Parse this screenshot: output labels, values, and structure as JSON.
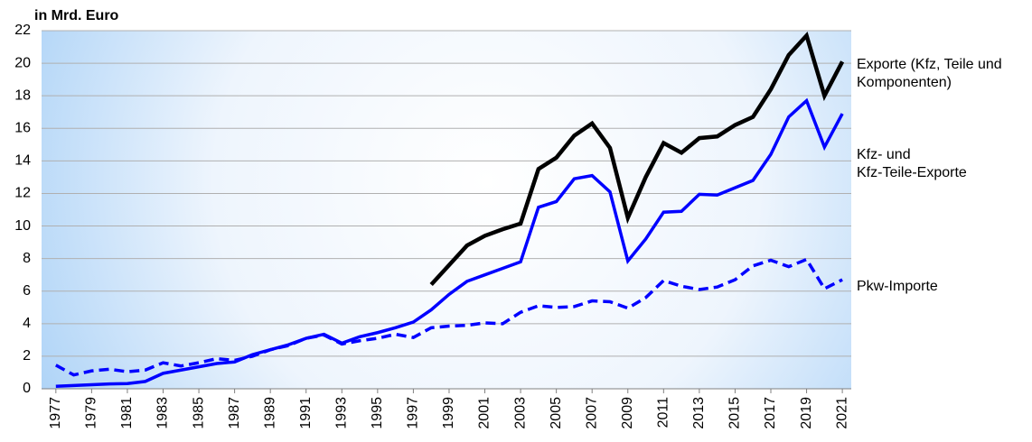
{
  "chart_data": {
    "type": "line",
    "y_label": "in Mrd. Euro",
    "x": [
      1977,
      1978,
      1979,
      1980,
      1981,
      1982,
      1983,
      1984,
      1985,
      1986,
      1987,
      1988,
      1989,
      1990,
      1991,
      1992,
      1993,
      1994,
      1995,
      1996,
      1997,
      1998,
      1999,
      2000,
      2001,
      2002,
      2003,
      2004,
      2005,
      2006,
      2007,
      2008,
      2009,
      2010,
      2011,
      2012,
      2013,
      2014,
      2015,
      2016,
      2017,
      2018,
      2019,
      2020,
      2021
    ],
    "xlim": [
      1976.2,
      2021.5
    ],
    "xticks": [
      1977,
      1979,
      1981,
      1983,
      1985,
      1987,
      1989,
      1991,
      1993,
      1995,
      1997,
      1999,
      2001,
      2003,
      2005,
      2007,
      2009,
      2011,
      2013,
      2015,
      2017,
      2019,
      2021
    ],
    "ylim": [
      0,
      22
    ],
    "yticks": [
      0,
      2,
      4,
      6,
      8,
      10,
      12,
      14,
      16,
      18,
      20,
      22
    ],
    "grid": true,
    "series": [
      {
        "name": "Exporte (Kfz, Teile und Komponenten)",
        "color": "#000000",
        "dashed": false,
        "values": [
          null,
          null,
          null,
          null,
          null,
          null,
          null,
          null,
          null,
          null,
          null,
          null,
          null,
          null,
          null,
          null,
          null,
          null,
          null,
          null,
          null,
          6.4,
          7.6,
          8.8,
          9.4,
          9.8,
          10.15,
          13.5,
          14.2,
          15.55,
          16.3,
          14.8,
          10.5,
          13.0,
          15.1,
          14.5,
          15.4,
          15.5,
          16.2,
          16.7,
          18.4,
          20.5,
          21.7,
          18.0,
          20.1
        ]
      },
      {
        "name": "Kfz- und Kfz-Teile-Exporte",
        "color": "#0000ff",
        "dashed": false,
        "values": [
          0.15,
          0.2,
          0.25,
          0.3,
          0.32,
          0.45,
          0.95,
          1.15,
          1.35,
          1.55,
          1.65,
          2.1,
          2.4,
          2.7,
          3.1,
          3.35,
          2.8,
          3.2,
          3.45,
          3.75,
          4.1,
          4.85,
          5.8,
          6.6,
          7.0,
          7.4,
          7.8,
          11.15,
          11.5,
          12.9,
          13.1,
          12.1,
          7.85,
          9.2,
          10.85,
          10.9,
          11.95,
          11.9,
          12.35,
          12.8,
          14.4,
          16.7,
          17.7,
          14.85,
          16.9
        ]
      },
      {
        "name": "Pkw-Importe",
        "color": "#0000ff",
        "dashed": true,
        "values": [
          1.45,
          0.85,
          1.1,
          1.2,
          1.05,
          1.15,
          1.6,
          1.4,
          1.6,
          1.85,
          1.75,
          2.0,
          2.4,
          2.65,
          3.1,
          3.3,
          2.75,
          2.95,
          3.1,
          3.35,
          3.15,
          3.75,
          3.85,
          3.9,
          4.05,
          4.0,
          4.7,
          5.1,
          5.0,
          5.05,
          5.4,
          5.35,
          4.95,
          5.6,
          6.65,
          6.3,
          6.1,
          6.25,
          6.7,
          7.55,
          7.9,
          7.5,
          7.95,
          6.15,
          6.7
        ]
      }
    ]
  }
}
